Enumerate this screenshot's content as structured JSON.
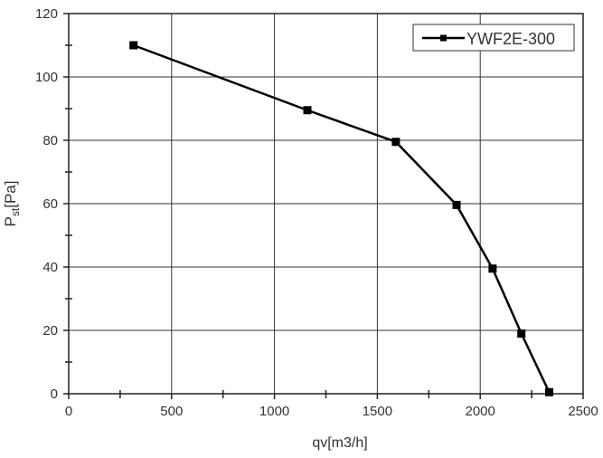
{
  "chart_data": {
    "type": "line",
    "title": "",
    "xlabel": "qv[m3/h]",
    "ylabel_main": "P",
    "ylabel_sub": "st",
    "ylabel_unit": "[Pa]",
    "xlim": [
      0,
      2500
    ],
    "ylim": [
      0,
      120
    ],
    "xticks": [
      0,
      500,
      1000,
      1500,
      2000,
      2500
    ],
    "yticks": [
      0,
      20,
      40,
      60,
      80,
      100,
      120
    ],
    "x_minor_step": 250,
    "y_minor_step": 10,
    "grid": true,
    "legend_position": "top-right",
    "series": [
      {
        "name": "YWF2E-300",
        "marker": "square",
        "color": "#000000",
        "x": [
          315,
          1160,
          1590,
          1885,
          2060,
          2200,
          2335
        ],
        "y": [
          110,
          89.5,
          79.5,
          59.6,
          39.5,
          19,
          0.5
        ]
      }
    ]
  }
}
